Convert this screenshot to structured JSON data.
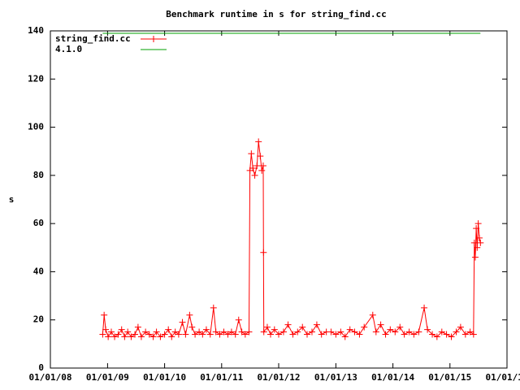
{
  "chart_data": {
    "type": "line",
    "title": "Benchmark runtime in s for string_find.cc",
    "y_label": "s",
    "xlim": [
      "2008-01-01",
      "2016-01-01"
    ],
    "xticks": [
      {
        "value": "2008-01-01",
        "label": "01/01/08"
      },
      {
        "value": "2009-01-01",
        "label": "01/01/09"
      },
      {
        "value": "2010-01-01",
        "label": "01/01/10"
      },
      {
        "value": "2011-01-01",
        "label": "01/01/11"
      },
      {
        "value": "2012-01-01",
        "label": "01/01/12"
      },
      {
        "value": "2013-01-01",
        "label": "01/01/13"
      },
      {
        "value": "2014-01-01",
        "label": "01/01/14"
      },
      {
        "value": "2015-01-01",
        "label": "01/01/15"
      },
      {
        "value": "2016-01-01",
        "label": "01/01/16"
      }
    ],
    "ylim": [
      0,
      140
    ],
    "yticks": [
      0,
      20,
      40,
      60,
      80,
      100,
      120,
      140
    ],
    "legend": "top-left",
    "series": [
      {
        "name": "string_find.cc",
        "color": "#ff0000",
        "markers": true,
        "x": [
          "2008-12-01",
          "2008-12-10",
          "2008-12-20",
          "2009-01-05",
          "2009-01-25",
          "2009-02-15",
          "2009-03-10",
          "2009-04-01",
          "2009-04-20",
          "2009-05-10",
          "2009-06-01",
          "2009-06-25",
          "2009-07-15",
          "2009-08-05",
          "2009-09-01",
          "2009-09-25",
          "2009-10-20",
          "2009-11-10",
          "2009-12-05",
          "2010-01-01",
          "2010-01-25",
          "2010-02-15",
          "2010-03-10",
          "2010-04-01",
          "2010-04-25",
          "2010-05-15",
          "2010-06-10",
          "2010-06-25",
          "2010-07-15",
          "2010-08-10",
          "2010-09-01",
          "2010-09-25",
          "2010-10-20",
          "2010-11-10",
          "2010-11-25",
          "2010-12-20",
          "2011-01-15",
          "2011-02-10",
          "2011-03-05",
          "2011-03-30",
          "2011-04-20",
          "2011-05-10",
          "2011-06-01",
          "2011-06-25",
          "2011-07-01",
          "2011-07-10",
          "2011-07-20",
          "2011-08-01",
          "2011-08-15",
          "2011-08-25",
          "2011-09-05",
          "2011-09-15",
          "2011-09-24",
          "2011-09-26",
          "2011-09-28",
          "2011-10-20",
          "2011-11-10",
          "2011-12-05",
          "2012-01-01",
          "2012-02-01",
          "2012-03-01",
          "2012-04-01",
          "2012-05-01",
          "2012-06-01",
          "2012-07-01",
          "2012-08-01",
          "2012-09-01",
          "2012-10-01",
          "2012-11-01",
          "2012-12-01",
          "2013-01-01",
          "2013-02-01",
          "2013-03-01",
          "2013-04-01",
          "2013-05-01",
          "2013-06-01",
          "2013-07-01",
          "2013-08-25",
          "2013-09-15",
          "2013-10-15",
          "2013-11-15",
          "2013-12-15",
          "2014-01-15",
          "2014-02-15",
          "2014-03-15",
          "2014-04-15",
          "2014-05-15",
          "2014-06-15",
          "2014-07-20",
          "2014-08-10",
          "2014-09-10",
          "2014-10-10",
          "2014-11-10",
          "2014-12-10",
          "2015-01-10",
          "2015-02-10",
          "2015-03-10",
          "2015-04-10",
          "2015-05-10",
          "2015-06-01",
          "2015-06-06",
          "2015-06-12",
          "2015-06-18",
          "2015-06-24",
          "2015-07-01",
          "2015-07-08",
          "2015-07-15"
        ],
        "values": [
          14,
          22,
          16,
          13,
          15,
          13,
          14,
          16,
          13,
          15,
          13,
          14,
          17,
          13,
          15,
          14,
          13,
          15,
          13,
          14,
          16,
          13,
          15,
          14,
          19,
          14,
          22,
          17,
          14,
          15,
          14,
          16,
          14,
          25,
          15,
          14,
          15,
          14,
          15,
          14,
          20,
          15,
          14,
          15,
          82,
          89,
          83,
          80,
          84,
          94,
          88,
          82,
          84,
          48,
          15,
          17,
          14,
          16,
          14,
          15,
          18,
          14,
          15,
          17,
          14,
          15,
          18,
          14,
          15,
          15,
          14,
          15,
          13,
          16,
          15,
          14,
          17,
          22,
          15,
          18,
          14,
          16,
          15,
          17,
          14,
          15,
          14,
          15,
          25,
          16,
          14,
          13,
          15,
          14,
          13,
          15,
          17,
          14,
          15,
          14,
          52,
          46,
          58,
          50,
          60,
          54,
          52
        ]
      },
      {
        "name": "4.1.0",
        "color": "#00a000",
        "markers": false,
        "x": [
          "2008-12-01",
          "2015-07-15"
        ],
        "values": [
          139,
          139
        ]
      }
    ]
  }
}
